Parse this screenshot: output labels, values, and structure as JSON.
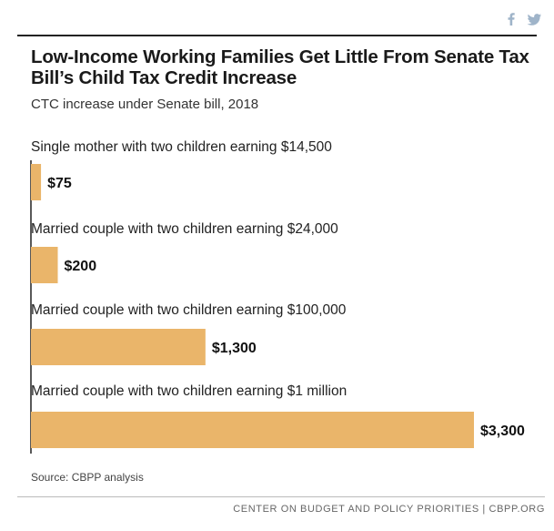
{
  "header": {
    "share_icons": [
      "facebook-icon",
      "twitter-icon"
    ]
  },
  "chart_data": {
    "type": "bar",
    "orientation": "horizontal",
    "title": "Low-Income Working Families Get Little From Senate Tax Bill’s Child Tax Credit Increase",
    "subtitle": "CTC increase under Senate bill, 2018",
    "categories": [
      "Single mother with two children earning $14,500",
      "Married couple with two children earning $24,000",
      "Married couple with two children earning $100,000",
      "Married couple with two children earning $1 million"
    ],
    "values": [
      75,
      200,
      1300,
      3300
    ],
    "data_labels": [
      "$75",
      "$200",
      "$1,300",
      "$3,300"
    ],
    "xlim": [
      0,
      3300
    ],
    "grid": false,
    "bar_color": "#EAB56A"
  },
  "footer": {
    "source": "Source: CBPP analysis",
    "org": "CENTER ON BUDGET AND POLICY PRIORITIES | CBPP.ORG"
  }
}
